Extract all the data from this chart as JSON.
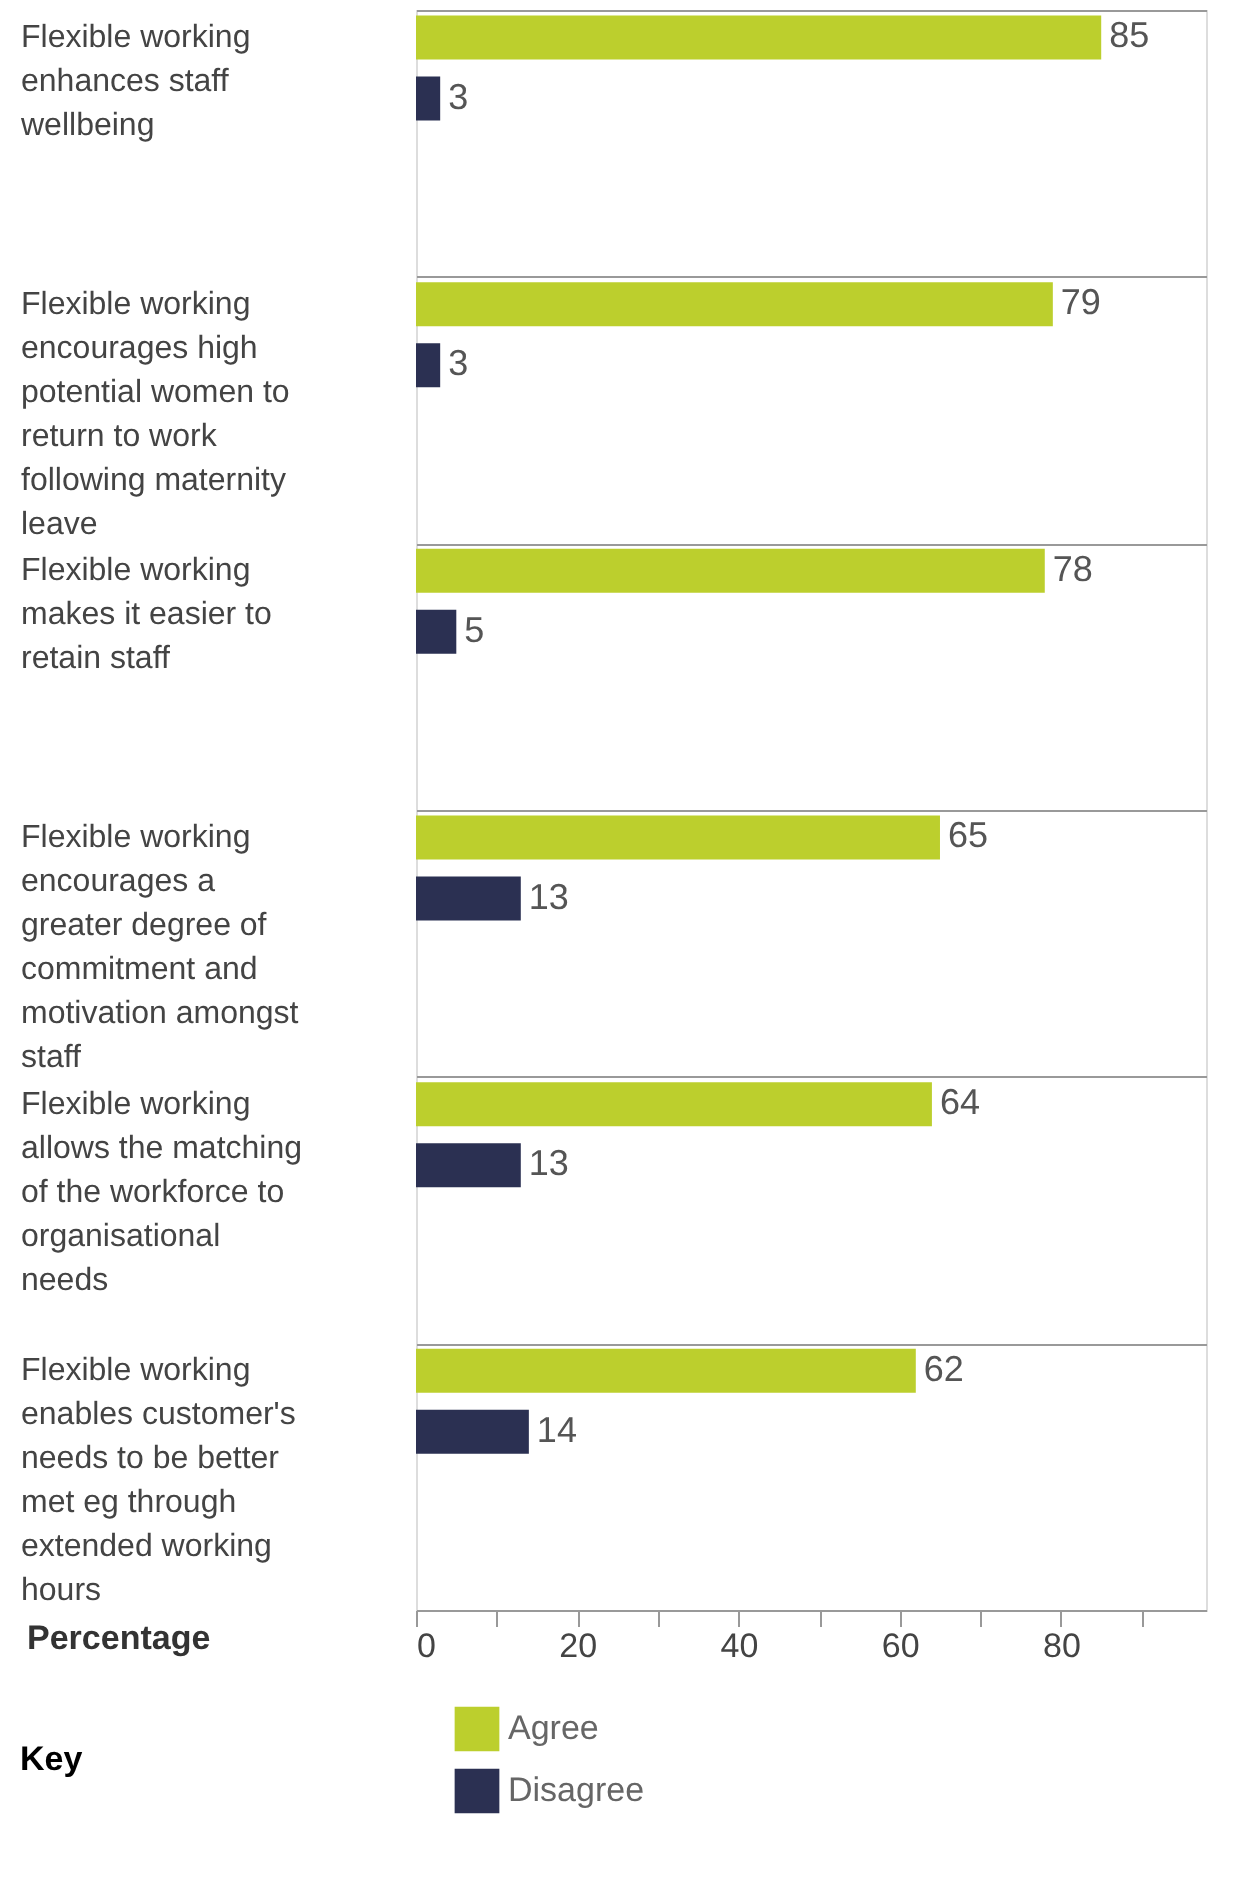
{
  "chart_data": {
    "type": "bar",
    "orientation": "horizontal",
    "xlabel": "Percentage",
    "legend_title": "Key",
    "legend": "bottom",
    "categories": [
      "Flexible working enhances staff wellbeing",
      "Flexible working encourages high potential women to return to work following maternity leave",
      "Flexible working makes it easier to retain staff",
      "Flexible working encourages a greater degree of commitment and motivation amongst staff",
      "Flexible working allows the matching of the workforce to organisational needs",
      "Flexible working enables customer's needs to be better met eg through extended working hours"
    ],
    "series": [
      {
        "name": "Agree",
        "color": "#bccf2d",
        "values": [
          85,
          79,
          78,
          65,
          64,
          62
        ]
      },
      {
        "name": "Disagree",
        "color": "#2b3052",
        "values": [
          3,
          3,
          5,
          13,
          13,
          14
        ]
      }
    ],
    "xlim": [
      0,
      98
    ],
    "xticks": [
      0,
      {
        "value": 10,
        "label": null
      },
      20,
      {
        "value": 30,
        "label": null
      },
      40,
      {
        "value": 50,
        "label": null
      },
      60,
      {
        "value": 70,
        "label": null
      },
      80,
      {
        "value": 90,
        "label": null
      }
    ],
    "data_labels": true,
    "grid": false
  }
}
